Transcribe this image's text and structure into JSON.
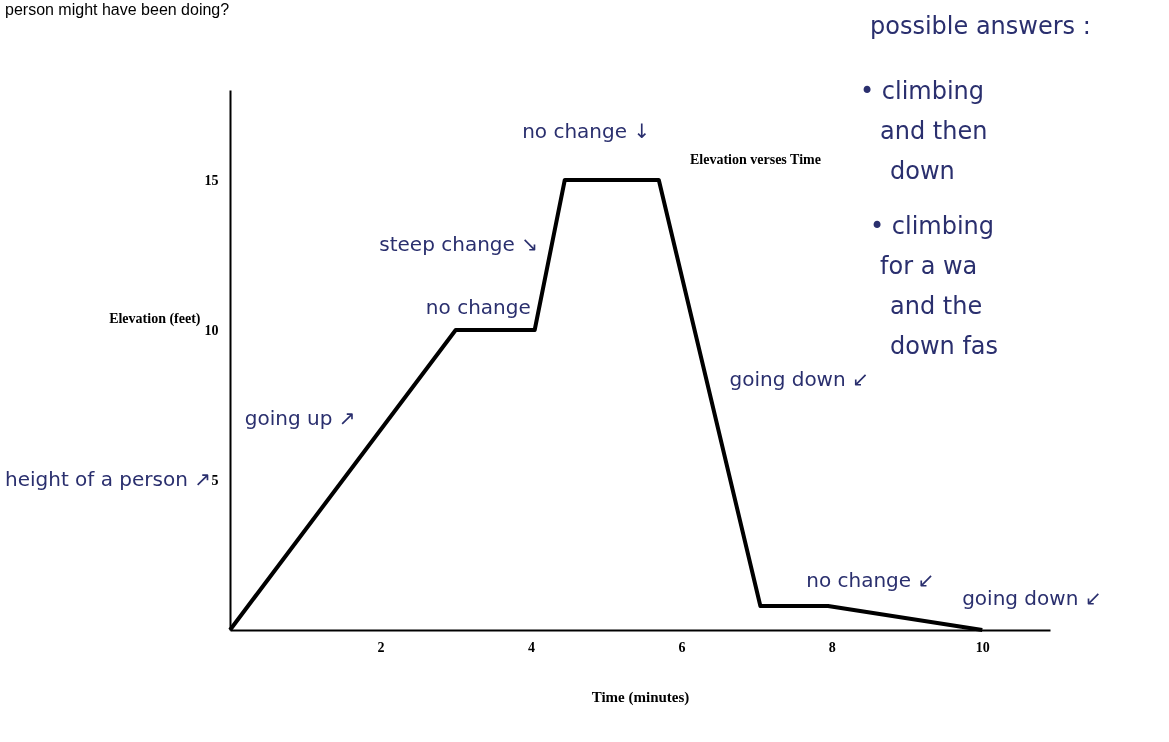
{
  "chart_data": {
    "type": "line",
    "title": "Elevation verses Time",
    "xlabel": "Time (minutes)",
    "ylabel": "Elevation (feet)",
    "x": [
      0,
      3.0,
      4.05,
      4.45,
      5.7,
      7.05,
      7.95,
      10
    ],
    "series": [
      {
        "color": "#000000",
        "values": [
          0,
          10,
          10,
          15,
          15,
          0.8,
          0.8,
          0
        ]
      }
    ],
    "xlim": [
      0,
      10.9
    ],
    "ylim": [
      0,
      18
    ],
    "xticks": [
      2,
      4,
      6,
      8,
      10
    ],
    "yticks": [
      5,
      10,
      15
    ],
    "grid": false,
    "marker": "none",
    "line_style": "solid",
    "annotations": [
      "person might have been doing?",
      "possible answers :",
      "• climbing",
      "and then",
      "down",
      "• climbing",
      "for a wa",
      "and the",
      "down fas",
      "height of a person ↗",
      {
        "text": "going up ↗",
        "x": 2,
        "y": 6.7
      },
      {
        "text": "no change",
        "x": 3.5,
        "y": 10
      },
      {
        "text": "steep change ↘",
        "x": 4.2,
        "y": 12.5
      },
      {
        "text": "no change ↓",
        "x": 5,
        "y": 15
      },
      {
        "text": "going down ↙",
        "x": 6.4,
        "y": 8
      },
      {
        "text": "no change ↙",
        "x": 7.5,
        "y": 0.8
      },
      {
        "text": "going down ↙",
        "x": 9.4,
        "y": 0.3
      }
    ]
  }
}
